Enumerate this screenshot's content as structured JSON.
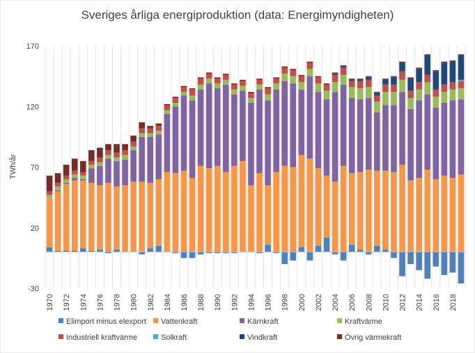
{
  "chart_data": {
    "type": "bar",
    "stacked": true,
    "title": "Sveriges årliga energiproduktion (data: Energimyndigheten)",
    "ylabel": "TWh/år",
    "xlabel": "",
    "ylim": [
      -30,
      170
    ],
    "yticks": [
      -30,
      20,
      70,
      120,
      170
    ],
    "xtick_labels": [
      "1970",
      "1972",
      "1974",
      "1976",
      "1978",
      "1980",
      "1982",
      "1984",
      "1986",
      "1988",
      "1990",
      "1992",
      "1994",
      "1996",
      "1998",
      "2000",
      "2002",
      "2004",
      "2006",
      "2008",
      "2010",
      "2012",
      "2014",
      "2016",
      "2018"
    ],
    "grid": "vertical",
    "legend_position": "bottom",
    "categories": [
      "1970",
      "1971",
      "1972",
      "1973",
      "1974",
      "1975",
      "1976",
      "1977",
      "1978",
      "1979",
      "1980",
      "1981",
      "1982",
      "1983",
      "1984",
      "1985",
      "1986",
      "1987",
      "1988",
      "1989",
      "1990",
      "1991",
      "1992",
      "1993",
      "1994",
      "1995",
      "1996",
      "1997",
      "1998",
      "1999",
      "2000",
      "2001",
      "2002",
      "2003",
      "2004",
      "2005",
      "2006",
      "2007",
      "2008",
      "2009",
      "2010",
      "2011",
      "2012",
      "2013",
      "2014",
      "2015",
      "2016",
      "2017",
      "2018",
      "2019"
    ],
    "series": [
      {
        "name": "Elimport minus elexport",
        "color": "#4f81bd",
        "values": [
          4,
          1,
          1,
          1,
          3,
          1,
          2,
          -1,
          2,
          0,
          0,
          -2,
          3,
          5,
          0,
          -1,
          -5,
          -5,
          -2,
          -1,
          -1,
          -1,
          -1,
          0,
          0,
          -1,
          6,
          -1,
          -10,
          -7,
          4,
          -7,
          5,
          12,
          -2,
          -7,
          6,
          2,
          -2,
          5,
          2,
          -5,
          -20,
          -10,
          -15,
          -22,
          -12,
          -19,
          -17,
          -26
        ]
      },
      {
        "name": "Vattenkraft",
        "color": "#f79646",
        "values": [
          40,
          49,
          55,
          58,
          56,
          56,
          53,
          57,
          52,
          55,
          58,
          58,
          54,
          55,
          66,
          65,
          67,
          61,
          71,
          69,
          71,
          66,
          71,
          75,
          55,
          65,
          49,
          66,
          71,
          70,
          76,
          77,
          64,
          51,
          58,
          71,
          59,
          64,
          68,
          62,
          65,
          66,
          72,
          59,
          61,
          68,
          60,
          63,
          61,
          64
        ]
      },
      {
        "name": "Kärnkraft",
        "color": "#8064a2",
        "values": [
          0,
          1,
          1,
          2,
          1,
          12,
          16,
          20,
          21,
          21,
          26,
          37,
          38,
          37,
          48,
          55,
          62,
          64,
          63,
          70,
          64,
          72,
          59,
          58,
          68,
          69,
          70,
          68,
          70,
          69,
          54,
          68,
          63,
          63,
          74,
          67,
          62,
          60,
          59,
          48,
          54,
          55,
          60,
          59,
          64,
          62,
          59,
          60,
          64,
          62
        ]
      },
      {
        "name": "Kraftvärme",
        "color": "#9bbb59",
        "values": [
          3,
          3,
          3,
          3,
          3,
          3,
          3,
          3,
          3,
          4,
          3,
          3,
          3,
          3,
          3,
          3,
          3,
          4,
          4,
          4,
          4,
          4,
          4,
          4,
          4,
          4,
          5,
          5,
          6,
          6,
          6,
          6,
          7,
          7,
          8,
          8,
          9,
          9,
          9,
          9,
          11,
          11,
          10,
          9,
          9,
          10,
          9,
          9,
          9,
          9
        ]
      },
      {
        "name": "Industriell kraftvärme",
        "color": "#c0504d",
        "values": [
          3,
          3,
          3,
          3,
          3,
          3,
          4,
          4,
          4,
          4,
          4,
          4,
          4,
          4,
          4,
          4,
          4,
          5,
          5,
          4,
          4,
          4,
          4,
          4,
          4,
          4,
          5,
          4,
          5,
          5,
          5,
          5,
          5,
          5,
          6,
          6,
          5,
          6,
          6,
          5,
          6,
          6,
          7,
          6,
          6,
          6,
          6,
          6,
          6,
          6
        ]
      },
      {
        "name": "Solkraft",
        "color": "#4bacc6",
        "values": [
          0,
          0,
          0,
          0,
          0,
          0,
          0,
          0,
          0,
          0,
          0,
          0,
          0,
          0,
          0,
          0,
          0,
          0,
          0,
          0,
          0,
          0,
          0,
          0,
          0,
          0,
          0,
          0,
          0,
          0,
          0,
          0,
          0,
          0,
          0,
          0,
          0,
          0,
          0,
          0,
          0,
          0,
          0,
          0,
          0,
          0,
          0,
          0,
          0,
          1
        ]
      },
      {
        "name": "Vindkraft",
        "color": "#1f497d",
        "values": [
          0,
          0,
          0,
          0,
          0,
          0,
          0,
          0,
          0,
          0,
          0,
          0,
          0,
          0,
          0,
          0,
          0,
          0,
          0,
          0,
          0,
          0,
          0,
          0,
          0,
          0,
          0,
          0,
          0,
          0,
          0,
          0,
          0,
          0,
          1,
          1,
          1,
          1,
          2,
          2,
          4,
          6,
          7,
          10,
          11,
          16,
          15,
          18,
          17,
          20
        ]
      },
      {
        "name": "Övrig värmekraft",
        "color": "#772c2a",
        "values": [
          13,
          8,
          9,
          10,
          9,
          9,
          8,
          5,
          7,
          5,
          5,
          5,
          2,
          2,
          1,
          1,
          1,
          1,
          1,
          1,
          1,
          1,
          1,
          1,
          1,
          1,
          1,
          1,
          1,
          1,
          1,
          1,
          1,
          1,
          1,
          1,
          1,
          1,
          1,
          1,
          1,
          1,
          1,
          1,
          1,
          1,
          1,
          1,
          1,
          1
        ]
      }
    ]
  }
}
